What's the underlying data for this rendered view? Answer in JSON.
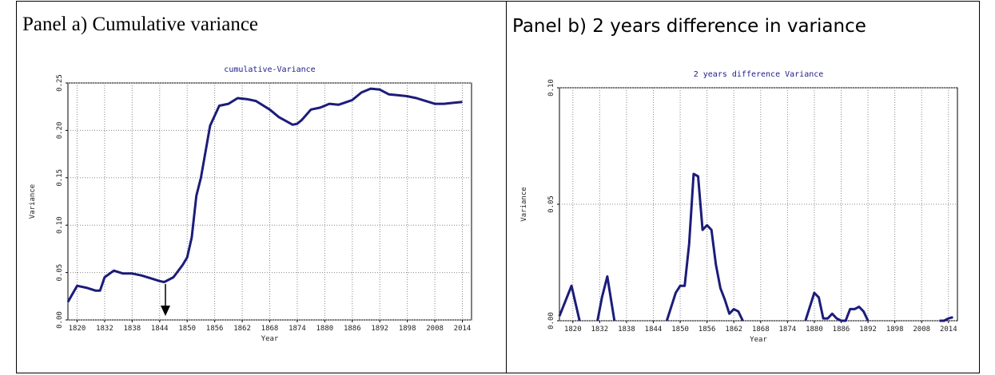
{
  "chart_data": [
    {
      "type": "line",
      "panel_title": "Panel a) Cumulative variance",
      "title": "cumulative-Variance",
      "x_label": "Year",
      "y_label": "Variance",
      "color": "#1c1c7a",
      "grid": true,
      "x": [
        1924,
        1926,
        1928,
        1930,
        1931,
        1932,
        1934,
        1936,
        1938,
        1940,
        1942,
        1944,
        1945,
        1947,
        1949,
        1950,
        1951,
        1952,
        1953,
        1955,
        1957,
        1959,
        1961,
        1963,
        1965,
        1968,
        1970,
        1973,
        1974,
        1975,
        1977,
        1979,
        1981,
        1983,
        1986,
        1988,
        1990,
        1992,
        1994,
        1996,
        1998,
        2000,
        2002,
        2004,
        2006,
        2008,
        2010
      ],
      "values": [
        0.019,
        0.036,
        0.034,
        0.031,
        0.031,
        0.045,
        0.052,
        0.049,
        0.049,
        0.047,
        0.044,
        0.041,
        0.04,
        0.045,
        0.058,
        0.066,
        0.087,
        0.131,
        0.15,
        0.205,
        0.226,
        0.228,
        0.234,
        0.233,
        0.231,
        0.222,
        0.214,
        0.206,
        0.207,
        0.211,
        0.222,
        0.224,
        0.228,
        0.227,
        0.232,
        0.24,
        0.244,
        0.243,
        0.238,
        0.237,
        0.236,
        0.234,
        0.231,
        0.228,
        0.228,
        0.229,
        0.23
      ],
      "xlim": [
        1924,
        2012
      ],
      "xticks": [
        {
          "value": 1926,
          "label": "1820"
        },
        {
          "value": 1932,
          "label": "1832"
        },
        {
          "value": 1938,
          "label": "1838"
        },
        {
          "value": 1944,
          "label": "1844"
        },
        {
          "value": 1950,
          "label": "1850"
        },
        {
          "value": 1956,
          "label": "1856"
        },
        {
          "value": 1962,
          "label": "1862"
        },
        {
          "value": 1968,
          "label": "1868"
        },
        {
          "value": 1974,
          "label": "1874"
        },
        {
          "value": 1980,
          "label": "1880"
        },
        {
          "value": 1986,
          "label": "1886"
        },
        {
          "value": 1992,
          "label": "1892"
        },
        {
          "value": 1998,
          "label": "1898"
        },
        {
          "value": 2004,
          "label": "2008"
        },
        {
          "value": 2010,
          "label": "2014"
        }
      ],
      "ylim": [
        0,
        0.25
      ],
      "yticks": [
        {
          "value": 0,
          "label": "0.00"
        },
        0.05,
        {
          "value": 0.1,
          "label": "0.10"
        },
        0.15,
        {
          "value": 0.2,
          "label": "0.20"
        },
        0.25
      ]
    },
    {
      "type": "line",
      "panel_title": "Panel b) 2 years difference in variance",
      "title": "2 years difference Variance",
      "x_label": "Year",
      "y_label": "Variance",
      "color": "#1c1c7a",
      "grid": true,
      "x": [
        1923,
        1925.7,
        1927.5,
        1929,
        1931.5,
        1932.5,
        1933.7,
        1935.3,
        1940,
        1947,
        1949,
        1950,
        1951,
        1952,
        1953,
        1954,
        1955,
        1956,
        1957,
        1958,
        1959,
        1960,
        1961,
        1962,
        1963,
        1964,
        1970,
        1978,
        1980,
        1981,
        1982,
        1983,
        1984,
        1985,
        1986,
        1987,
        1988,
        1989,
        1990,
        1991,
        1992,
        2000,
        2008,
        2009,
        2010,
        2011
      ],
      "values": [
        0.002,
        0.015,
        0,
        null,
        0,
        0.01,
        0.019,
        0,
        null,
        0,
        0.012,
        0.015,
        0.015,
        0.033,
        0.063,
        0.062,
        0.039,
        0.041,
        0.039,
        0.024,
        0.014,
        0.009,
        0.003,
        0.005,
        0.004,
        0,
        null,
        0,
        0.012,
        0.01,
        0.001,
        0.001,
        0.003,
        0.001,
        0,
        0,
        0.005,
        0.005,
        0.006,
        0.004,
        0,
        null,
        0,
        0,
        0.001,
        0.0015
      ],
      "xlim": [
        1923,
        2012
      ],
      "xticks": [
        {
          "value": 1926,
          "label": "1820"
        },
        {
          "value": 1932,
          "label": "1832"
        },
        {
          "value": 1938,
          "label": "1838"
        },
        {
          "value": 1944,
          "label": "1844"
        },
        {
          "value": 1950,
          "label": "1850"
        },
        {
          "value": 1956,
          "label": "1856"
        },
        {
          "value": 1962,
          "label": "1862"
        },
        {
          "value": 1968,
          "label": "1868"
        },
        {
          "value": 1974,
          "label": "1874"
        },
        {
          "value": 1980,
          "label": "1880"
        },
        {
          "value": 1986,
          "label": "1886"
        },
        {
          "value": 1992,
          "label": "1892"
        },
        {
          "value": 1998,
          "label": "1898"
        },
        {
          "value": 2004,
          "label": "2008"
        },
        {
          "value": 2010,
          "label": "2014"
        }
      ],
      "ylim": [
        0,
        0.1
      ],
      "yticks": [
        {
          "value": 0,
          "label": "0.00"
        },
        0.05,
        {
          "value": 0.1,
          "label": "0.10"
        }
      ]
    }
  ]
}
